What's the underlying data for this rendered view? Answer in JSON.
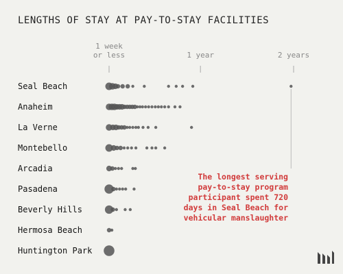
{
  "chart_data": {
    "type": "scatter",
    "title": "LENGTHS OF STAY AT PAY-TO-STAY FACILITIES",
    "x_unit": "days",
    "x_ticks": [
      {
        "value": 7,
        "lines": [
          "1 week",
          "or less"
        ]
      },
      {
        "value": 365,
        "lines": [
          "1 year"
        ]
      },
      {
        "value": 730,
        "lines": [
          "2 years"
        ]
      }
    ],
    "xlim": [
      7,
      730
    ],
    "categories": [
      "Seal Beach",
      "Anaheim",
      "La Verne",
      "Montebello",
      "Arcadia",
      "Pasadena",
      "Beverly Hills",
      "Hermosa Beach",
      "Huntington Park"
    ],
    "series": [
      {
        "facility": "Seal Beach",
        "points": [
          {
            "x": 7,
            "n": 5
          },
          {
            "x": 20,
            "n": 4
          },
          {
            "x": 32,
            "n": 3
          },
          {
            "x": 42,
            "n": 2
          },
          {
            "x": 60,
            "n": 2
          },
          {
            "x": 80,
            "n": 2
          },
          {
            "x": 100,
            "n": 1
          },
          {
            "x": 145,
            "n": 1
          },
          {
            "x": 240,
            "n": 1
          },
          {
            "x": 270,
            "n": 1
          },
          {
            "x": 295,
            "n": 1
          },
          {
            "x": 335,
            "n": 1
          },
          {
            "x": 720,
            "n": 1
          }
        ]
      },
      {
        "facility": "Anaheim",
        "points": [
          {
            "x": 7,
            "n": 4
          },
          {
            "x": 18,
            "n": 4
          },
          {
            "x": 28,
            "n": 4
          },
          {
            "x": 38,
            "n": 3
          },
          {
            "x": 48,
            "n": 3
          },
          {
            "x": 58,
            "n": 3
          },
          {
            "x": 68,
            "n": 2
          },
          {
            "x": 78,
            "n": 2
          },
          {
            "x": 88,
            "n": 2
          },
          {
            "x": 98,
            "n": 2
          },
          {
            "x": 108,
            "n": 2
          },
          {
            "x": 118,
            "n": 1
          },
          {
            "x": 128,
            "n": 1
          },
          {
            "x": 138,
            "n": 1
          },
          {
            "x": 150,
            "n": 1
          },
          {
            "x": 162,
            "n": 1
          },
          {
            "x": 175,
            "n": 1
          },
          {
            "x": 188,
            "n": 1
          },
          {
            "x": 200,
            "n": 1
          },
          {
            "x": 212,
            "n": 1
          },
          {
            "x": 225,
            "n": 1
          },
          {
            "x": 240,
            "n": 1
          },
          {
            "x": 265,
            "n": 1
          },
          {
            "x": 285,
            "n": 1
          }
        ]
      },
      {
        "facility": "La Verne",
        "points": [
          {
            "x": 7,
            "n": 4
          },
          {
            "x": 22,
            "n": 3
          },
          {
            "x": 34,
            "n": 3
          },
          {
            "x": 45,
            "n": 2
          },
          {
            "x": 56,
            "n": 2
          },
          {
            "x": 67,
            "n": 2
          },
          {
            "x": 78,
            "n": 1
          },
          {
            "x": 88,
            "n": 1
          },
          {
            "x": 100,
            "n": 1
          },
          {
            "x": 112,
            "n": 1
          },
          {
            "x": 122,
            "n": 1
          },
          {
            "x": 140,
            "n": 1
          },
          {
            "x": 160,
            "n": 1
          },
          {
            "x": 190,
            "n": 1
          },
          {
            "x": 330,
            "n": 1
          }
        ]
      },
      {
        "facility": "Montebello",
        "points": [
          {
            "x": 7,
            "n": 5
          },
          {
            "x": 25,
            "n": 3
          },
          {
            "x": 38,
            "n": 2
          },
          {
            "x": 52,
            "n": 2
          },
          {
            "x": 66,
            "n": 1
          },
          {
            "x": 80,
            "n": 1
          },
          {
            "x": 95,
            "n": 1
          },
          {
            "x": 112,
            "n": 1
          },
          {
            "x": 155,
            "n": 1
          },
          {
            "x": 175,
            "n": 1
          },
          {
            "x": 190,
            "n": 1
          },
          {
            "x": 225,
            "n": 1
          }
        ]
      },
      {
        "facility": "Arcadia",
        "points": [
          {
            "x": 7,
            "n": 3
          },
          {
            "x": 20,
            "n": 2
          },
          {
            "x": 32,
            "n": 1
          },
          {
            "x": 44,
            "n": 1
          },
          {
            "x": 56,
            "n": 1
          },
          {
            "x": 100,
            "n": 1
          },
          {
            "x": 110,
            "n": 1
          }
        ]
      },
      {
        "facility": "Pasadena",
        "points": [
          {
            "x": 7,
            "n": 7
          },
          {
            "x": 24,
            "n": 2
          },
          {
            "x": 36,
            "n": 1
          },
          {
            "x": 48,
            "n": 1
          },
          {
            "x": 60,
            "n": 1
          },
          {
            "x": 72,
            "n": 1
          },
          {
            "x": 105,
            "n": 1
          }
        ]
      },
      {
        "facility": "Beverly Hills",
        "points": [
          {
            "x": 7,
            "n": 6
          },
          {
            "x": 22,
            "n": 2
          },
          {
            "x": 36,
            "n": 1
          },
          {
            "x": 70,
            "n": 1
          },
          {
            "x": 90,
            "n": 1
          }
        ]
      },
      {
        "facility": "Hermosa Beach",
        "points": [
          {
            "x": 7,
            "n": 2
          },
          {
            "x": 18,
            "n": 1
          }
        ]
      },
      {
        "facility": "Huntington Park",
        "points": [
          {
            "x": 7,
            "n": 9
          }
        ]
      }
    ],
    "annotation": {
      "lines": [
        "The longest serving",
        "pay-to-stay program",
        "participant spent 720",
        "days in Seal Beach for",
        "vehicular manslaughter"
      ],
      "target_facility": "Seal Beach",
      "target_x": 720
    },
    "colors": {
      "dots": "#555555",
      "annotation": "#d13b3b",
      "ticks": "#aaaaaa",
      "background": "#f2f2ee"
    }
  }
}
